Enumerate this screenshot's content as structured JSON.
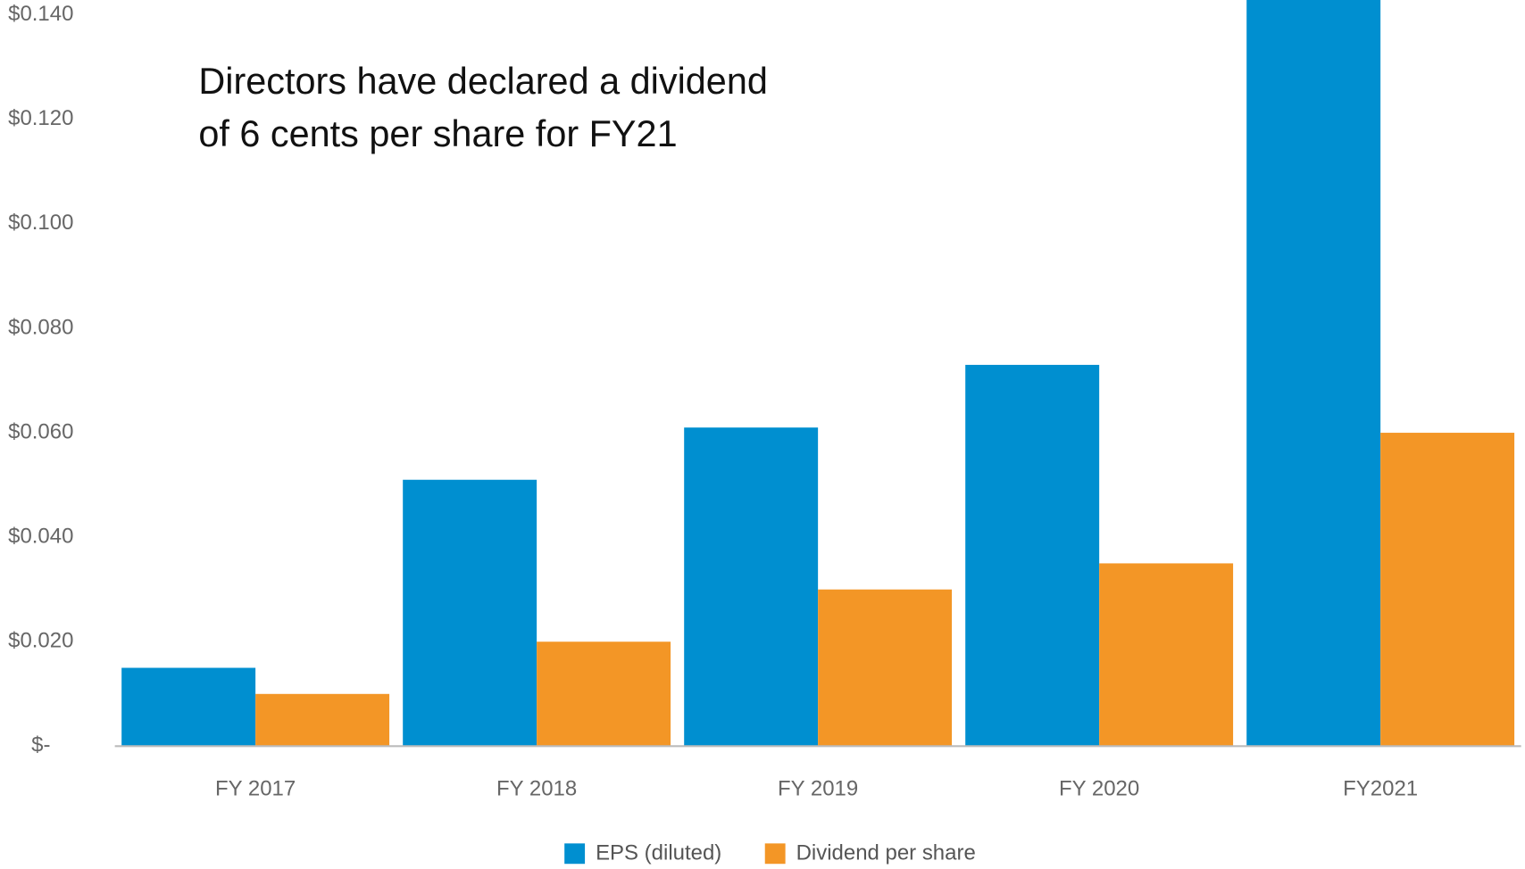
{
  "chart_data": {
    "type": "bar",
    "annotation": [
      "Directors have declared a dividend",
      "of 6 cents per share for FY21"
    ],
    "categories": [
      "FY 2017",
      "FY 2018",
      "FY 2019",
      "FY 2020",
      "FY2021"
    ],
    "series": [
      {
        "name": "EPS (diluted)",
        "color": "#008fd0",
        "values": [
          0.015,
          0.051,
          0.061,
          0.073,
          0.143
        ]
      },
      {
        "name": "Dividend per share",
        "color": "#f39626",
        "values": [
          0.01,
          0.02,
          0.03,
          0.035,
          0.06
        ]
      }
    ],
    "ylim": [
      0,
      0.14
    ],
    "yticks": [
      {
        "value": 0,
        "label": "$-"
      },
      {
        "value": 0.02,
        "label": "$0.020"
      },
      {
        "value": 0.04,
        "label": "$0.040"
      },
      {
        "value": 0.06,
        "label": "$0.060"
      },
      {
        "value": 0.08,
        "label": "$0.080"
      },
      {
        "value": 0.1,
        "label": "$0.100"
      },
      {
        "value": 0.12,
        "label": "$0.120"
      },
      {
        "value": 0.14,
        "label": "$0.140"
      }
    ],
    "grid": false,
    "legend": "bottom"
  }
}
